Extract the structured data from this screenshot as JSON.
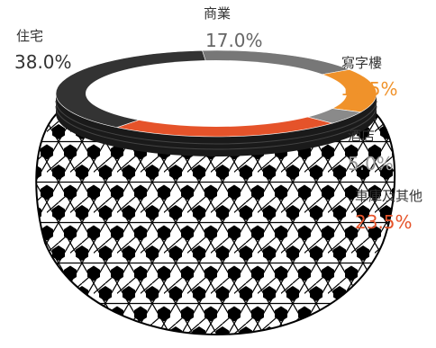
{
  "chart_data": {
    "type": "pie",
    "title": "",
    "start_category": "商業",
    "slices": [
      {
        "name": "商業",
        "value": 17.0,
        "label": "17.0%",
        "color": "#777777",
        "label_color": "#666666"
      },
      {
        "name": "寫字樓",
        "value": 16.5,
        "label": "16.5%",
        "color": "#F0922A",
        "label_color": "#F0922A"
      },
      {
        "name": "酒店",
        "value": 5.0,
        "label": "5.0%",
        "color": "#8A8A8A",
        "label_color": "#999999"
      },
      {
        "name": "車庫及其他",
        "value": 23.5,
        "label": "23.5%",
        "color": "#E5532A",
        "label_color": "#E5532A"
      },
      {
        "name": "住宅",
        "value": 38.0,
        "label": "38.0%",
        "color": "#333333",
        "label_color": "#333333"
      }
    ]
  }
}
